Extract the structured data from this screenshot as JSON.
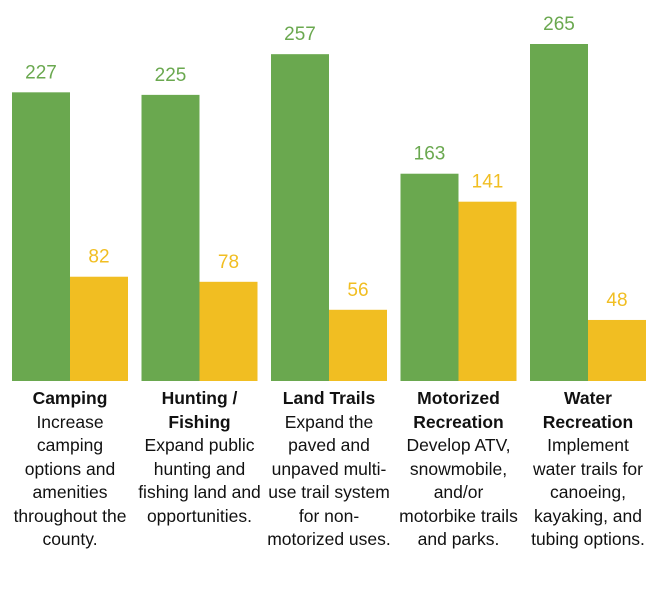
{
  "chart_data": {
    "type": "bar",
    "categories": [
      "Camping",
      "Hunting / Fishing",
      "Land Trails",
      "Motorized Recreation",
      "Water Recreation"
    ],
    "descriptions": [
      "Increase camping options and amenities throughout the county.",
      "Expand public hunting and fishing land and opportunities.",
      "Expand the paved and unpaved multi-use trail system for non-motorized uses.",
      "Develop ATV, snowmobile, and/or motorbike trails and parks.",
      "Implement water trails for canoeing, kayaking, and tubing options."
    ],
    "series": [
      {
        "color": "#6aa84f",
        "values": [
          227,
          225,
          257,
          163,
          265
        ]
      },
      {
        "color": "#f1be22",
        "values": [
          82,
          78,
          56,
          141,
          48
        ]
      }
    ]
  }
}
